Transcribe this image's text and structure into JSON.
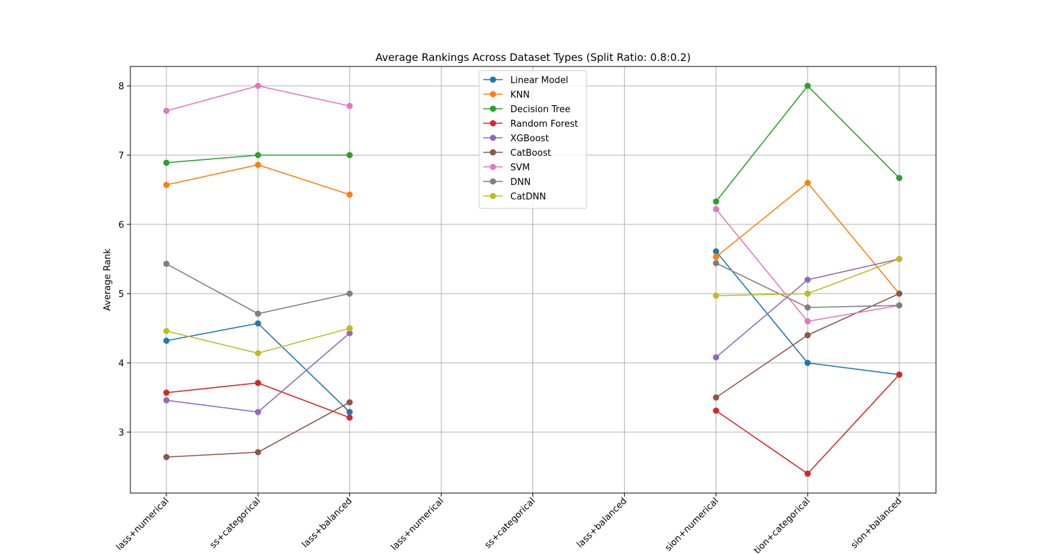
{
  "chart_data": {
    "type": "line",
    "title": "Average Rankings Across Dataset Types (Split Ratio: 0.8:0.2)",
    "xlabel": "",
    "ylabel": "Average Rank",
    "categories": [
      "binclass+numerical",
      "binclass+categorical",
      "binclass+balanced",
      "multiclass+numerical",
      "multiclass+categorical",
      "multiclass+balanced",
      "regression+numerical",
      "regression+categorical",
      "regression+balanced"
    ],
    "visible_tick_labels": [
      "lass+numerical",
      "ss+categorical",
      "lass+balanced",
      "lass+numerical",
      "ss+categorical",
      "lass+balanced",
      "sion+numerical",
      "tion+categorical",
      "sion+balanced"
    ],
    "ylim": [
      2.12,
      8.28
    ],
    "yticks": [
      3,
      4,
      5,
      6,
      7,
      8
    ],
    "grid": true,
    "legend_position": "upper center",
    "series": [
      {
        "name": "Linear Model",
        "color": "#1f77b4",
        "values": [
          4.32,
          4.57,
          3.29,
          null,
          null,
          null,
          5.61,
          4.0,
          3.83
        ]
      },
      {
        "name": "KNN",
        "color": "#ff7f0e",
        "values": [
          6.57,
          6.86,
          6.43,
          null,
          null,
          null,
          5.53,
          6.6,
          5.0
        ]
      },
      {
        "name": "Decision Tree",
        "color": "#2ca02c",
        "values": [
          6.89,
          7.0,
          7.0,
          null,
          null,
          null,
          6.33,
          8.0,
          6.67
        ]
      },
      {
        "name": "Random Forest",
        "color": "#d62728",
        "values": [
          3.57,
          3.71,
          3.21,
          null,
          null,
          null,
          3.31,
          2.4,
          3.83
        ]
      },
      {
        "name": "XGBoost",
        "color": "#9467bd",
        "values": [
          3.46,
          3.29,
          4.43,
          null,
          null,
          null,
          4.08,
          5.2,
          5.5
        ]
      },
      {
        "name": "CatBoost",
        "color": "#8c564b",
        "values": [
          2.64,
          2.71,
          3.43,
          null,
          null,
          null,
          3.5,
          4.4,
          5.0
        ]
      },
      {
        "name": "SVM",
        "color": "#e377c2",
        "values": [
          7.64,
          8.0,
          7.71,
          null,
          null,
          null,
          6.22,
          4.6,
          4.83
        ]
      },
      {
        "name": "DNN",
        "color": "#7f7f7f",
        "values": [
          5.43,
          4.71,
          5.0,
          null,
          null,
          null,
          5.44,
          4.8,
          4.83
        ]
      },
      {
        "name": "CatDNN",
        "color": "#bcbd22",
        "values": [
          4.46,
          4.14,
          4.5,
          null,
          null,
          null,
          4.97,
          5.0,
          5.5
        ]
      }
    ]
  }
}
